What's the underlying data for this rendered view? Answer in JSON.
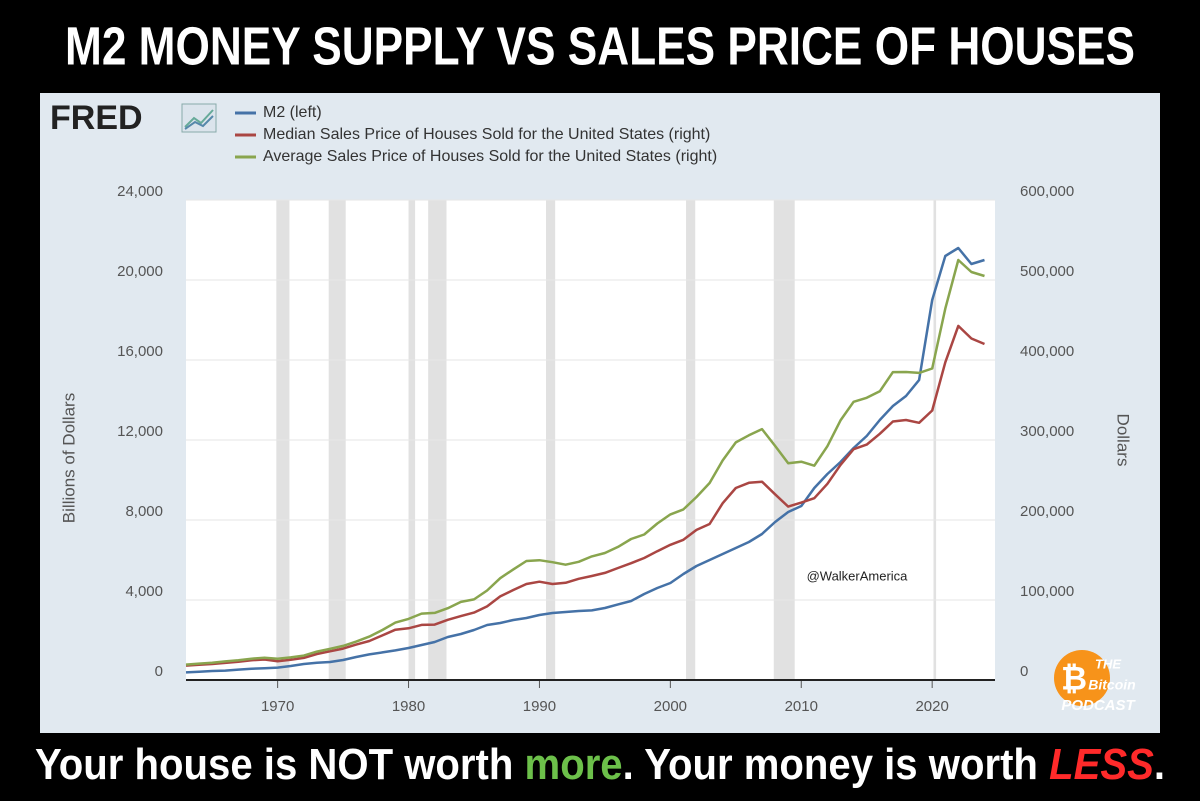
{
  "header": {
    "title": "M2 MONEY SUPPLY VS SALES PRICE OF HOUSES"
  },
  "chart_data": {
    "type": "line",
    "source": "FRED",
    "ylabel": "Billions of Dollars",
    "y2label": "Dollars",
    "annotation": "@WalkerAmerica",
    "x": [
      1963,
      1964,
      1965,
      1966,
      1967,
      1968,
      1969,
      1970,
      1971,
      1972,
      1973,
      1974,
      1975,
      1976,
      1977,
      1978,
      1979,
      1980,
      1981,
      1982,
      1983,
      1984,
      1985,
      1986,
      1987,
      1988,
      1989,
      1990,
      1991,
      1992,
      1993,
      1994,
      1995,
      1996,
      1997,
      1998,
      1999,
      2000,
      2001,
      2002,
      2003,
      2004,
      2005,
      2006,
      2007,
      2008,
      2009,
      2010,
      2011,
      2012,
      2013,
      2014,
      2015,
      2016,
      2017,
      2018,
      2019,
      2020,
      2021,
      2022,
      2023,
      2024
    ],
    "series": [
      {
        "name": "M2 (left)",
        "color": "#4572a7",
        "axis": "y",
        "values": [
          380,
          410,
          450,
          470,
          520,
          560,
          590,
          620,
          700,
          800,
          860,
          900,
          1000,
          1150,
          1280,
          1380,
          1480,
          1600,
          1750,
          1900,
          2150,
          2300,
          2500,
          2750,
          2850,
          3000,
          3100,
          3250,
          3350,
          3400,
          3450,
          3480,
          3600,
          3780,
          3950,
          4300,
          4600,
          4850,
          5300,
          5700,
          6000,
          6300,
          6600,
          6900,
          7300,
          7900,
          8400,
          8700,
          9600,
          10300,
          10900,
          11600,
          12200,
          13000,
          13700,
          14200,
          15000,
          19000,
          21200,
          21600,
          20800,
          21000
        ]
      },
      {
        "name": "Median Sales Price of Houses Sold for the United States (right)",
        "color": "#aa4643",
        "axis": "y2",
        "values": [
          18000,
          19000,
          20000,
          21400,
          22700,
          24700,
          25600,
          23400,
          25200,
          27600,
          32500,
          35900,
          39300,
          44200,
          48800,
          55700,
          62900,
          64600,
          68900,
          69300,
          75300,
          79900,
          84300,
          92000,
          104500,
          112500,
          120000,
          122900,
          120000,
          121500,
          126500,
          130000,
          133900,
          140000,
          146000,
          152500,
          161000,
          169000,
          175200,
          187600,
          195000,
          221000,
          240000,
          246500,
          247900,
          232100,
          216700,
          221800,
          227200,
          245200,
          268900,
          288500,
          294200,
          307800,
          323100,
          325000,
          321500,
          336900,
          397100,
          442600,
          426900,
          420000
        ]
      },
      {
        "name": "Average Sales Price of Houses Sold for the United States (right)",
        "color": "#89a54e",
        "axis": "y2",
        "values": [
          19300,
          20500,
          21500,
          23300,
          24600,
          26600,
          27900,
          26600,
          28300,
          30500,
          35500,
          38900,
          42600,
          48000,
          54200,
          62500,
          71800,
          76400,
          83000,
          83900,
          89800,
          97600,
          100800,
          111900,
          127200,
          138300,
          148800,
          149800,
          147200,
          144100,
          147700,
          154500,
          158700,
          166400,
          176200,
          181900,
          195600,
          207000,
          213200,
          228700,
          246300,
          274500,
          297000,
          305900,
          313600,
          292600,
          270900,
          272900,
          267900,
          292200,
          324500,
          347700,
          352700,
          360900,
          384900,
          385000,
          383900,
          389400,
          464200,
          525000,
          510000,
          505000
        ]
      }
    ],
    "recessions": [
      [
        1969.9,
        1970.9
      ],
      [
        1973.9,
        1975.2
      ],
      [
        1980.0,
        1980.5
      ],
      [
        1981.5,
        1982.9
      ],
      [
        1990.5,
        1991.2
      ],
      [
        2001.2,
        2001.9
      ],
      [
        2007.9,
        2009.5
      ],
      [
        2020.1,
        2020.3
      ]
    ],
    "recession_color": "#e1e1e1",
    "xlim": [
      1963,
      2024.8
    ],
    "xticks": [
      1970,
      1980,
      1990,
      2000,
      2010,
      2020
    ],
    "ylim": [
      0,
      24000
    ],
    "yticks": [
      0,
      {
        "value": 4000,
        "label": "4,000"
      },
      {
        "value": 8000,
        "label": "8,000"
      },
      {
        "value": 12000,
        "label": "12,000"
      },
      {
        "value": 16000,
        "label": "16,000"
      },
      {
        "value": 20000,
        "label": "20,000"
      },
      {
        "value": 24000,
        "label": "24,000"
      }
    ],
    "y2lim": [
      0,
      600000
    ],
    "y2ticks": [
      0,
      {
        "value": 100000,
        "label": "100,000"
      },
      {
        "value": 200000,
        "label": "200,000"
      },
      {
        "value": 300000,
        "label": "300,000"
      },
      {
        "value": 400000,
        "label": "400,000"
      },
      {
        "value": 500000,
        "label": "500,000"
      },
      {
        "value": 600000,
        "label": "600,000"
      }
    ],
    "grid": true
  },
  "logo": {
    "top": "THE",
    "middle": "Bitcoin",
    "bottom": "PODCAST"
  },
  "caption": {
    "parts": [
      "Your house is NOT worth ",
      "more",
      ". Your money is worth ",
      "LESS",
      "."
    ]
  }
}
